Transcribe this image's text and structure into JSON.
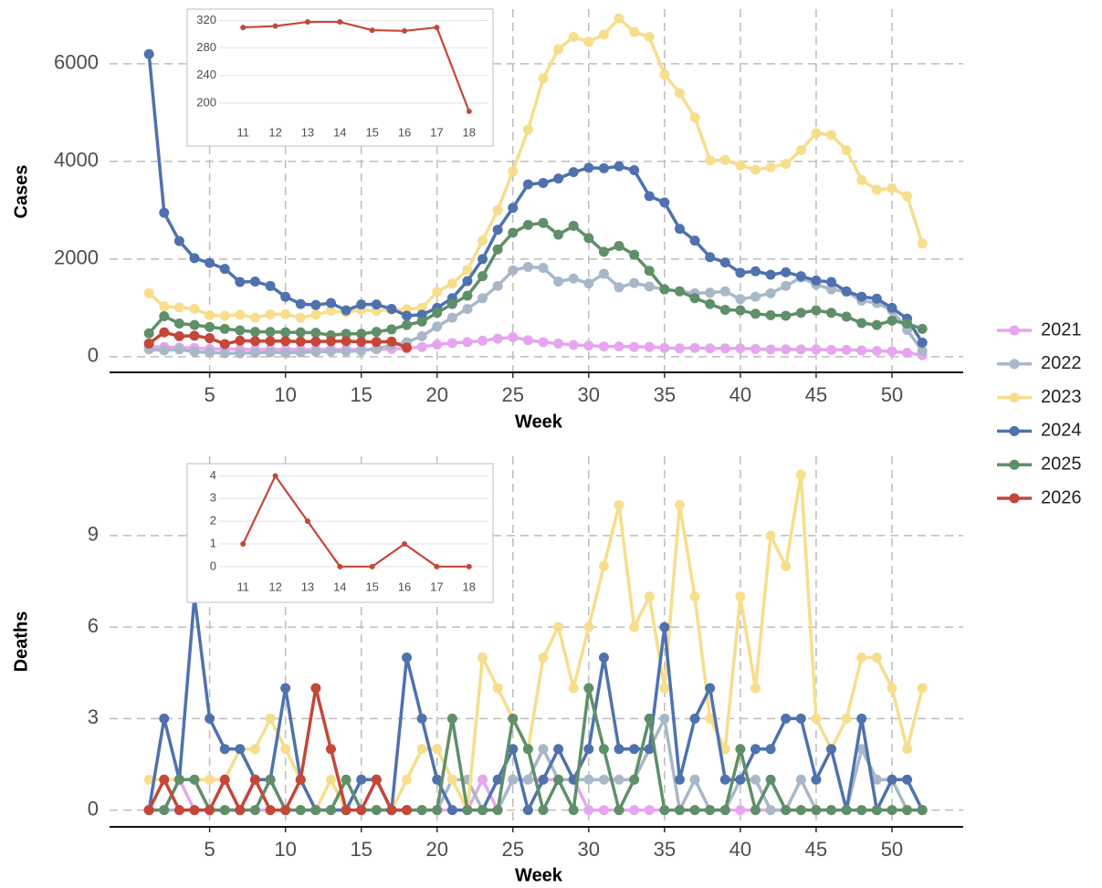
{
  "chart_data": [
    {
      "type": "line",
      "x_label": "Week",
      "y_label": "Cases",
      "x": [
        1,
        2,
        3,
        4,
        5,
        6,
        7,
        8,
        9,
        10,
        11,
        12,
        13,
        14,
        15,
        16,
        17,
        18,
        19,
        20,
        21,
        22,
        23,
        24,
        25,
        26,
        27,
        28,
        29,
        30,
        31,
        32,
        33,
        34,
        35,
        36,
        37,
        38,
        39,
        40,
        41,
        42,
        43,
        44,
        45,
        46,
        47,
        48,
        49,
        50,
        51,
        52
      ],
      "xlim": [
        -1.6,
        54.7
      ],
      "xticks": [
        5,
        10,
        15,
        20,
        25,
        30,
        35,
        40,
        45,
        50
      ],
      "ylim": [
        -320,
        7120
      ],
      "yticks": [
        0,
        2000,
        4000,
        6000
      ],
      "grid": true,
      "legend_position": "right",
      "series": [
        {
          "name": "2021",
          "color": "#e6a6ef",
          "values": [
            200,
            200,
            190,
            180,
            160,
            160,
            150,
            150,
            150,
            150,
            150,
            150,
            150,
            150,
            150,
            150,
            160,
            170,
            200,
            250,
            280,
            300,
            330,
            370,
            400,
            340,
            300,
            270,
            240,
            230,
            210,
            210,
            200,
            200,
            180,
            170,
            180,
            170,
            170,
            170,
            160,
            150,
            150,
            150,
            150,
            140,
            140,
            130,
            120,
            110,
            80,
            30
          ]
        },
        {
          "name": "2022",
          "color": "#a8b8c8",
          "values": [
            150,
            130,
            150,
            100,
            90,
            70,
            70,
            80,
            90,
            80,
            90,
            100,
            110,
            110,
            120,
            170,
            230,
            300,
            420,
            620,
            800,
            980,
            1200,
            1450,
            1770,
            1840,
            1820,
            1540,
            1600,
            1500,
            1700,
            1420,
            1510,
            1440,
            1380,
            1340,
            1300,
            1310,
            1340,
            1180,
            1230,
            1300,
            1450,
            1620,
            1480,
            1380,
            1330,
            1150,
            1100,
            950,
            550,
            120
          ]
        },
        {
          "name": "2023",
          "color": "#f7de8c",
          "values": [
            1300,
            1030,
            1010,
            980,
            850,
            840,
            860,
            800,
            870,
            870,
            800,
            860,
            940,
            910,
            960,
            940,
            960,
            970,
            1000,
            1330,
            1500,
            1780,
            2380,
            3000,
            3800,
            4650,
            5700,
            6300,
            6550,
            6450,
            6600,
            6930,
            6650,
            6550,
            5780,
            5400,
            4900,
            4020,
            4030,
            3920,
            3830,
            3880,
            3950,
            4230,
            4580,
            4540,
            4230,
            3620,
            3420,
            3450,
            3290,
            2320
          ]
        },
        {
          "name": "2024",
          "color": "#4f72ae",
          "values": [
            6200,
            2950,
            2370,
            2020,
            1920,
            1800,
            1530,
            1540,
            1450,
            1230,
            1080,
            1060,
            1100,
            950,
            1070,
            1070,
            980,
            840,
            860,
            1000,
            1200,
            1550,
            2000,
            2600,
            3050,
            3530,
            3560,
            3650,
            3780,
            3870,
            3860,
            3900,
            3820,
            3290,
            3160,
            2620,
            2380,
            2040,
            1930,
            1720,
            1750,
            1680,
            1730,
            1650,
            1560,
            1530,
            1340,
            1230,
            1190,
            1000,
            780,
            290
          ]
        },
        {
          "name": "2025",
          "color": "#5f8f69",
          "values": [
            480,
            830,
            680,
            650,
            610,
            570,
            540,
            510,
            510,
            500,
            500,
            490,
            440,
            470,
            470,
            510,
            560,
            650,
            720,
            900,
            1080,
            1250,
            1650,
            2200,
            2540,
            2700,
            2740,
            2500,
            2680,
            2430,
            2150,
            2270,
            2090,
            1760,
            1380,
            1340,
            1200,
            1080,
            960,
            950,
            880,
            850,
            840,
            900,
            950,
            900,
            820,
            690,
            650,
            740,
            680,
            570
          ]
        },
        {
          "name": "2026",
          "color": "#c4473a",
          "values": [
            270,
            500,
            420,
            430,
            380,
            260,
            330,
            320,
            320,
            320,
            310,
            312,
            318,
            318,
            306,
            305,
            310,
            188,
            null,
            null,
            null,
            null,
            null,
            null,
            null,
            null,
            null,
            null,
            null,
            null,
            null,
            null,
            null,
            null,
            null,
            null,
            null,
            null,
            null,
            null,
            null,
            null,
            null,
            null,
            null,
            null,
            null,
            null,
            null,
            null,
            null,
            null
          ]
        }
      ]
    },
    {
      "type": "line",
      "x": [
        11,
        12,
        13,
        14,
        15,
        16,
        17,
        18
      ],
      "xlim": [
        10.4,
        18.6
      ],
      "xticks": [
        11,
        12,
        13,
        14,
        15,
        16,
        17,
        18
      ],
      "ylim": [
        180,
        330
      ],
      "yticks": [
        200,
        240,
        280,
        320
      ],
      "grid": true,
      "series": [
        {
          "color": "#c4473a",
          "values": [
            310,
            312,
            318,
            318,
            306,
            305,
            310,
            188
          ]
        }
      ]
    },
    {
      "type": "line",
      "x_label": "Week",
      "y_label": "Deaths",
      "x": [
        1,
        2,
        3,
        4,
        5,
        6,
        7,
        8,
        9,
        10,
        11,
        12,
        13,
        14,
        15,
        16,
        17,
        18,
        19,
        20,
        21,
        22,
        23,
        24,
        25,
        26,
        27,
        28,
        29,
        30,
        31,
        32,
        33,
        34,
        35,
        36,
        37,
        38,
        39,
        40,
        41,
        42,
        43,
        44,
        45,
        46,
        47,
        48,
        49,
        50,
        51,
        52
      ],
      "xlim": [
        -1.6,
        54.7
      ],
      "xticks": [
        5,
        10,
        15,
        20,
        25,
        30,
        35,
        40,
        45,
        50
      ],
      "ylim": [
        -0.55,
        11.6
      ],
      "yticks": [
        0,
        3,
        6,
        9
      ],
      "grid": true,
      "series": [
        {
          "name": "2021",
          "color": "#e6a6ef",
          "values": [
            0,
            0,
            1,
            0,
            0,
            0,
            0,
            0,
            0,
            0,
            0,
            0,
            0,
            0,
            0,
            0,
            0,
            0,
            0,
            0,
            0,
            0,
            1,
            0,
            1,
            1,
            1,
            1,
            1,
            0,
            0,
            0,
            0,
            0,
            0,
            0,
            0,
            0,
            0,
            0,
            0,
            0,
            0,
            0,
            0,
            0,
            0,
            0,
            0,
            0,
            0,
            0
          ]
        },
        {
          "name": "2022",
          "color": "#a8b8c8",
          "values": [
            0,
            0,
            0,
            0,
            0,
            0,
            0,
            1,
            1,
            0,
            0,
            0,
            0,
            0,
            0,
            0,
            0,
            0,
            0,
            0,
            1,
            1,
            0,
            0,
            1,
            1,
            2,
            1,
            1,
            1,
            1,
            1,
            1,
            2,
            3,
            0,
            1,
            0,
            0,
            1,
            1,
            0,
            0,
            1,
            0,
            0,
            0,
            2,
            1,
            1,
            0,
            0
          ]
        },
        {
          "name": "2023",
          "color": "#f7de8c",
          "values": [
            1,
            1,
            1,
            1,
            1,
            1,
            2,
            2,
            3,
            2,
            1,
            0,
            1,
            0,
            0,
            0,
            0,
            1,
            2,
            2,
            1,
            0,
            5,
            4,
            3,
            2,
            5,
            6,
            4,
            6,
            8,
            10,
            6,
            7,
            4,
            10,
            7,
            3,
            2,
            7,
            4,
            9,
            8,
            11,
            3,
            2,
            3,
            5,
            5,
            4,
            2,
            4
          ]
        },
        {
          "name": "2024",
          "color": "#4f72ae",
          "values": [
            0,
            3,
            1,
            7,
            3,
            2,
            2,
            1,
            1,
            4,
            1,
            0,
            0,
            0,
            1,
            1,
            0,
            5,
            3,
            1,
            0,
            0,
            0,
            1,
            2,
            0,
            1,
            2,
            1,
            2,
            5,
            2,
            2,
            2,
            6,
            1,
            3,
            4,
            1,
            1,
            2,
            2,
            3,
            3,
            1,
            2,
            0,
            3,
            0,
            1,
            1,
            0
          ]
        },
        {
          "name": "2025",
          "color": "#5f8f69",
          "values": [
            0,
            0,
            1,
            1,
            0,
            0,
            0,
            0,
            1,
            0,
            0,
            0,
            0,
            1,
            0,
            0,
            0,
            0,
            0,
            0,
            3,
            0,
            0,
            0,
            3,
            2,
            0,
            1,
            0,
            4,
            2,
            0,
            1,
            3,
            0,
            0,
            0,
            0,
            0,
            2,
            0,
            1,
            0,
            0,
            0,
            0,
            0,
            0,
            0,
            0,
            0,
            0
          ]
        },
        {
          "name": "2026",
          "color": "#c4473a",
          "values": [
            0,
            1,
            0,
            0,
            0,
            1,
            0,
            1,
            0,
            0,
            1,
            4,
            2,
            0,
            0,
            1,
            0,
            0,
            null,
            null,
            null,
            null,
            null,
            null,
            null,
            null,
            null,
            null,
            null,
            null,
            null,
            null,
            null,
            null,
            null,
            null,
            null,
            null,
            null,
            null,
            null,
            null,
            null,
            null,
            null,
            null,
            null,
            null,
            null,
            null,
            null,
            null
          ]
        }
      ]
    },
    {
      "type": "line",
      "x": [
        11,
        12,
        13,
        14,
        15,
        16,
        17,
        18
      ],
      "xlim": [
        10.4,
        18.6
      ],
      "xticks": [
        11,
        12,
        13,
        14,
        15,
        16,
        17,
        18
      ],
      "ylim": [
        -0.45,
        4.3
      ],
      "yticks": [
        0,
        1,
        2,
        3,
        4
      ],
      "grid": true,
      "series": [
        {
          "color": "#c4473a",
          "values": [
            1,
            4,
            2,
            0,
            0,
            1,
            0,
            0
          ]
        }
      ]
    }
  ]
}
